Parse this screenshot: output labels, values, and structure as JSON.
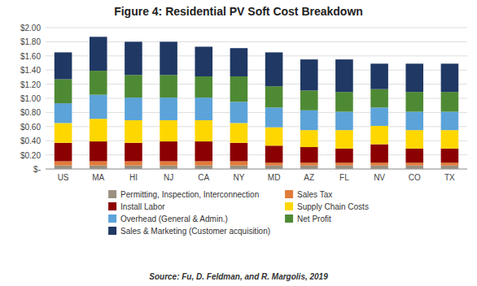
{
  "chart_data": {
    "type": "bar",
    "title": "Figure 4: Residential PV Soft Cost Breakdown",
    "source": "Source: Fu, D. Feldman, and R. Margolis, 2019",
    "categories": [
      "US",
      "MA",
      "HI",
      "NJ",
      "CA",
      "NY",
      "MD",
      "AZ",
      "FL",
      "NV",
      "CO",
      "TX"
    ],
    "stacked": true,
    "grid": true,
    "legend": "bottom",
    "series": [
      {
        "name": "Permitting, Inspection, Interconnection",
        "color": "#9B9182",
        "values": [
          0.05,
          0.05,
          0.05,
          0.05,
          0.05,
          0.05,
          0.05,
          0.05,
          0.05,
          0.05,
          0.05,
          0.05
        ]
      },
      {
        "name": "Sales Tax",
        "color": "#E07B39",
        "values": [
          0.06,
          0.06,
          0.06,
          0.06,
          0.06,
          0.06,
          0.04,
          0.04,
          0.04,
          0.04,
          0.04,
          0.04
        ]
      },
      {
        "name": "Install Labor",
        "color": "#8B0000",
        "values": [
          0.26,
          0.28,
          0.26,
          0.28,
          0.28,
          0.26,
          0.24,
          0.22,
          0.2,
          0.26,
          0.2,
          0.2
        ]
      },
      {
        "name": "Supply Chain Costs",
        "color": "#FFD700",
        "values": [
          0.28,
          0.32,
          0.32,
          0.3,
          0.3,
          0.28,
          0.26,
          0.24,
          0.26,
          0.26,
          0.26,
          0.26
        ]
      },
      {
        "name": "Overhead (General & Admin.)",
        "color": "#5BA3D9",
        "values": [
          0.28,
          0.34,
          0.32,
          0.32,
          0.32,
          0.3,
          0.28,
          0.28,
          0.26,
          0.26,
          0.26,
          0.26
        ]
      },
      {
        "name": "Net Profit",
        "color": "#4E8A34",
        "values": [
          0.34,
          0.34,
          0.32,
          0.32,
          0.3,
          0.36,
          0.3,
          0.28,
          0.28,
          0.26,
          0.28,
          0.28
        ]
      },
      {
        "name": "Sales & Marketing (Customer acquisition)",
        "color": "#1F3864",
        "values": [
          0.38,
          0.48,
          0.47,
          0.47,
          0.42,
          0.4,
          0.48,
          0.44,
          0.46,
          0.36,
          0.4,
          0.4
        ]
      }
    ],
    "ylim": [
      0,
      2.0
    ],
    "yticks": [
      {
        "value": 0,
        "label": "$-"
      },
      {
        "value": 0.2,
        "label": "$0.20"
      },
      {
        "value": 0.4,
        "label": "$0.40"
      },
      {
        "value": 0.6,
        "label": "$0.60"
      },
      {
        "value": 0.8,
        "label": "$0.80"
      },
      {
        "value": 1.0,
        "label": "$1.00"
      },
      {
        "value": 1.2,
        "label": "$1.20"
      },
      {
        "value": 1.4,
        "label": "$1.40"
      },
      {
        "value": 1.6,
        "label": "$1.60"
      },
      {
        "value": 1.8,
        "label": "$1.80"
      },
      {
        "value": 2.0,
        "label": "$2.00"
      }
    ]
  }
}
